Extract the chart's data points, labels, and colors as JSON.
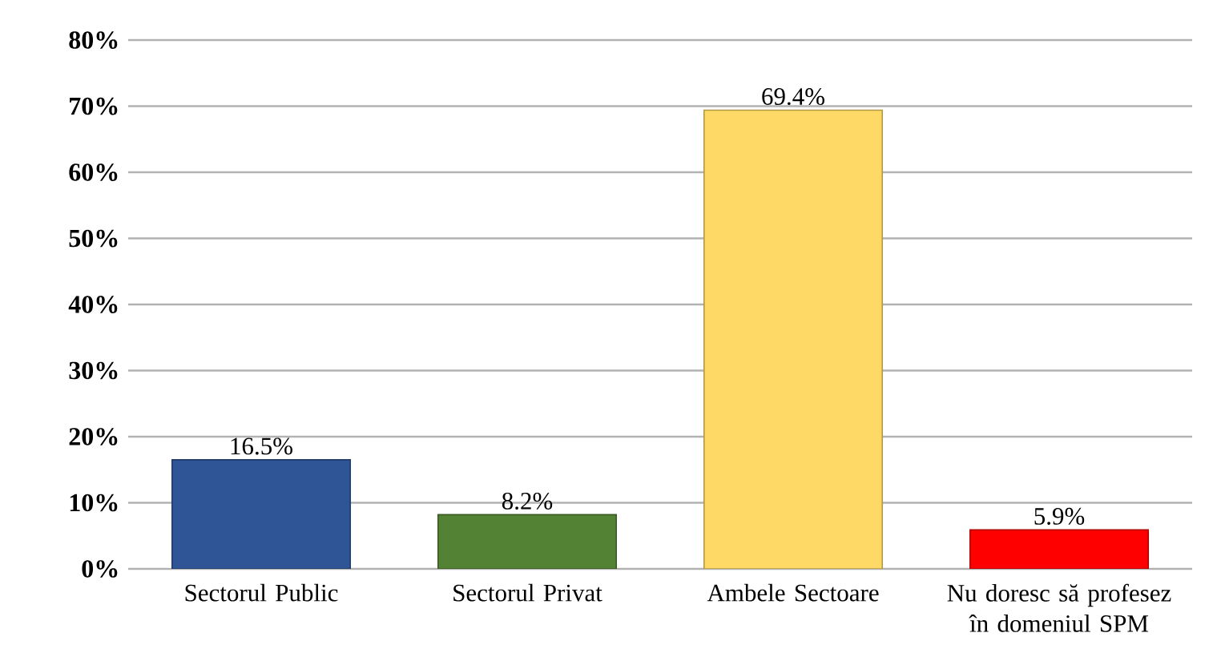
{
  "chart_data": {
    "type": "bar",
    "categories": [
      "Sectorul Public",
      "Sectorul Privat",
      "Ambele Sectoare",
      "Nu doresc să profesez în domeniul SPM"
    ],
    "values": [
      16.5,
      8.2,
      69.4,
      5.9
    ],
    "colors": [
      "#2f5597",
      "#548235",
      "#ffd966",
      "#ff0000"
    ],
    "value_labels": [
      "16.5%",
      "8.2%",
      "69.4%",
      "5.9%"
    ],
    "ylim": [
      0,
      80
    ],
    "yticks": [
      {
        "value": 0,
        "label": "0%"
      },
      {
        "value": 10,
        "label": "10%"
      },
      {
        "value": 20,
        "label": "20%"
      },
      {
        "value": 30,
        "label": "30%"
      },
      {
        "value": 40,
        "label": "40%"
      },
      {
        "value": 50,
        "label": "50%"
      },
      {
        "value": 60,
        "label": "60%"
      },
      {
        "value": 70,
        "label": "70%"
      },
      {
        "value": 80,
        "label": "80%"
      }
    ],
    "grid": "y"
  }
}
